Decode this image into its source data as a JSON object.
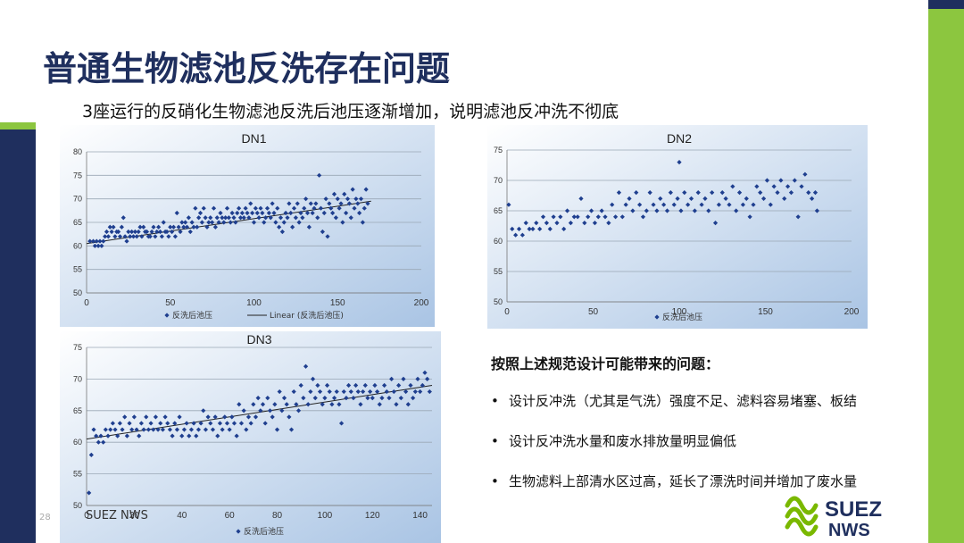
{
  "title": "普通生物滤池反洗存在问题",
  "subtitle": "3座运行的反硝化生物滤池反洗后池压逐渐增加，说明滤池反冲洗不彻底",
  "issues": {
    "heading": "按照上述规范设计可能带来的问题：",
    "items": [
      "设计反冲洗（尤其是气洗）强度不足、滤料容易堵塞、板结",
      "设计反冲洗水量和废水排放量明显偏低",
      "生物滤料上部清水区过高，延长了漂洗时间并增加了废水量"
    ]
  },
  "footer": {
    "page_number": "28",
    "company": "SUEZ NWS",
    "logo_text_top": "SUEZ",
    "logo_text_bottom": "NWS"
  },
  "colors": {
    "navy": "#1f2f5e",
    "green": "#8cc63f",
    "marker": "#1f3f8f",
    "chart_bg_light": "#ffffff",
    "chart_bg_dark": "#a9c4e4"
  },
  "chart_data": [
    {
      "type": "scatter",
      "title": "DN1",
      "xlim": [
        0,
        200
      ],
      "ylim": [
        50,
        80
      ],
      "xticks": [
        0,
        50,
        100,
        150,
        200
      ],
      "yticks": [
        50,
        55,
        60,
        65,
        70,
        75,
        80
      ],
      "legend": [
        "反洗后池压",
        "Linear (反洗后池压)"
      ],
      "trendline": {
        "x": [
          0,
          170
        ],
        "y": [
          60.5,
          69.5
        ]
      },
      "points": {
        "x": [
          2,
          4,
          5,
          6,
          7,
          8,
          9,
          10,
          11,
          12,
          13,
          14,
          15,
          16,
          17,
          18,
          19,
          20,
          21,
          22,
          23,
          24,
          25,
          26,
          27,
          28,
          29,
          30,
          31,
          32,
          33,
          34,
          35,
          36,
          37,
          38,
          39,
          40,
          41,
          42,
          43,
          44,
          45,
          46,
          47,
          48,
          49,
          50,
          51,
          52,
          53,
          54,
          55,
          56,
          57,
          58,
          59,
          60,
          61,
          62,
          63,
          64,
          65,
          66,
          67,
          68,
          69,
          70,
          71,
          72,
          73,
          74,
          75,
          76,
          77,
          78,
          79,
          80,
          81,
          82,
          83,
          84,
          85,
          86,
          87,
          88,
          89,
          90,
          91,
          92,
          93,
          94,
          95,
          96,
          97,
          98,
          99,
          100,
          101,
          102,
          103,
          104,
          105,
          106,
          107,
          108,
          109,
          110,
          111,
          112,
          113,
          114,
          115,
          116,
          117,
          118,
          119,
          120,
          121,
          122,
          123,
          124,
          125,
          126,
          127,
          128,
          129,
          130,
          131,
          132,
          133,
          134,
          135,
          136,
          137,
          138,
          139,
          140,
          141,
          142,
          143,
          144,
          145,
          146,
          147,
          148,
          149,
          150,
          151,
          152,
          153,
          154,
          155,
          156,
          157,
          158,
          159,
          160,
          161,
          162,
          163,
          164,
          165,
          166,
          167,
          168
        ],
        "y": [
          61,
          61,
          60,
          61,
          60,
          61,
          60,
          61,
          62,
          63,
          62,
          64,
          63,
          64,
          62,
          63,
          63,
          62,
          64,
          66,
          62,
          61,
          63,
          62,
          63,
          62,
          63,
          62,
          63,
          64,
          62,
          64,
          63,
          63,
          62,
          62,
          63,
          64,
          62,
          63,
          64,
          63,
          62,
          65,
          63,
          63,
          62,
          64,
          63,
          64,
          62,
          67,
          64,
          63,
          65,
          64,
          65,
          64,
          66,
          63,
          65,
          64,
          68,
          64,
          66,
          67,
          65,
          68,
          66,
          64,
          65,
          66,
          65,
          68,
          64,
          66,
          65,
          67,
          66,
          65,
          66,
          68,
          66,
          65,
          67,
          66,
          65,
          67,
          68,
          66,
          67,
          66,
          68,
          67,
          66,
          69,
          67,
          65,
          68,
          67,
          66,
          68,
          67,
          65,
          66,
          68,
          67,
          66,
          69,
          67,
          65,
          68,
          64,
          66,
          63,
          65,
          67,
          66,
          69,
          67,
          64,
          68,
          66,
          69,
          65,
          67,
          66,
          68,
          70,
          67,
          64,
          69,
          67,
          68,
          69,
          66,
          75,
          68,
          63,
          67,
          70,
          62,
          69,
          68,
          67,
          71,
          66,
          70,
          68,
          69,
          65,
          71,
          67,
          70,
          69,
          66,
          72,
          68,
          70,
          69,
          67,
          70,
          65,
          68,
          72,
          69
        ],
        "note": "values estimated from plot"
      }
    },
    {
      "type": "scatter",
      "title": "DN2",
      "xlim": [
        0,
        200
      ],
      "ylim": [
        50,
        75
      ],
      "xticks": [
        0,
        50,
        100,
        150,
        200
      ],
      "yticks": [
        50,
        55,
        60,
        65,
        70,
        75
      ],
      "legend": [
        "反洗后池压"
      ],
      "points": {
        "x": [
          1,
          3,
          5,
          7,
          9,
          11,
          13,
          15,
          17,
          19,
          21,
          23,
          25,
          27,
          29,
          31,
          33,
          35,
          37,
          39,
          41,
          43,
          45,
          47,
          49,
          51,
          53,
          55,
          57,
          59,
          61,
          63,
          65,
          67,
          69,
          71,
          73,
          75,
          77,
          79,
          81,
          83,
          85,
          87,
          89,
          91,
          93,
          95,
          97,
          99,
          100,
          101,
          103,
          105,
          107,
          109,
          111,
          113,
          115,
          117,
          119,
          121,
          123,
          125,
          127,
          129,
          131,
          133,
          135,
          137,
          139,
          141,
          143,
          145,
          147,
          149,
          151,
          153,
          155,
          157,
          159,
          161,
          163,
          165,
          167,
          169,
          171,
          173,
          175,
          177,
          179,
          180
        ],
        "y": [
          66,
          62,
          61,
          62,
          61,
          63,
          62,
          62,
          63,
          62,
          64,
          63,
          62,
          64,
          63,
          64,
          62,
          65,
          63,
          64,
          64,
          67,
          63,
          64,
          65,
          63,
          64,
          65,
          64,
          63,
          66,
          64,
          68,
          64,
          66,
          67,
          65,
          68,
          66,
          64,
          65,
          68,
          66,
          65,
          67,
          66,
          65,
          68,
          66,
          67,
          73,
          65,
          68,
          66,
          67,
          65,
          68,
          66,
          67,
          65,
          68,
          63,
          66,
          68,
          67,
          66,
          69,
          65,
          68,
          66,
          67,
          64,
          66,
          69,
          68,
          67,
          70,
          66,
          69,
          68,
          70,
          67,
          69,
          68,
          70,
          64,
          69,
          71,
          68,
          67,
          68,
          65
        ],
        "note": "values estimated from plot"
      }
    },
    {
      "type": "scatter",
      "title": "DN3",
      "xlim": [
        0,
        145
      ],
      "ylim": [
        50,
        75
      ],
      "xticks": [
        0,
        20,
        40,
        60,
        80,
        100,
        120,
        140
      ],
      "yticks": [
        50,
        55,
        60,
        65,
        70,
        75
      ],
      "legend": [
        "反洗后池压"
      ],
      "trendline": {
        "x": [
          0,
          145
        ],
        "y": [
          60.5,
          69
        ]
      },
      "points": {
        "x": [
          1,
          2,
          3,
          4,
          5,
          6,
          7,
          8,
          9,
          10,
          11,
          12,
          13,
          14,
          15,
          16,
          17,
          18,
          19,
          20,
          21,
          22,
          23,
          24,
          25,
          26,
          27,
          28,
          29,
          30,
          31,
          32,
          33,
          34,
          35,
          36,
          37,
          38,
          39,
          40,
          41,
          42,
          43,
          44,
          45,
          46,
          47,
          48,
          49,
          50,
          51,
          52,
          53,
          54,
          55,
          56,
          57,
          58,
          59,
          60,
          61,
          62,
          63,
          64,
          65,
          66,
          67,
          68,
          69,
          70,
          71,
          72,
          73,
          74,
          75,
          76,
          77,
          78,
          79,
          80,
          81,
          82,
          83,
          84,
          85,
          86,
          87,
          88,
          89,
          90,
          91,
          92,
          93,
          94,
          95,
          96,
          97,
          98,
          99,
          100,
          101,
          102,
          103,
          104,
          105,
          106,
          107,
          108,
          109,
          110,
          111,
          112,
          113,
          114,
          115,
          116,
          117,
          118,
          119,
          120,
          121,
          122,
          123,
          124,
          125,
          126,
          127,
          128,
          129,
          130,
          131,
          132,
          133,
          134,
          135,
          136,
          137,
          138,
          139,
          140,
          141,
          142,
          143,
          144
        ],
        "y": [
          52,
          58,
          62,
          61,
          60,
          61,
          60,
          62,
          61,
          62,
          63,
          62,
          61,
          63,
          62,
          64,
          61,
          63,
          62,
          64,
          62,
          61,
          63,
          62,
          64,
          62,
          63,
          62,
          64,
          62,
          63,
          62,
          64,
          63,
          62,
          61,
          63,
          62,
          64,
          61,
          62,
          63,
          61,
          62,
          63,
          61,
          62,
          63,
          65,
          62,
          64,
          63,
          62,
          64,
          61,
          63,
          62,
          64,
          63,
          62,
          64,
          63,
          61,
          66,
          63,
          65,
          62,
          64,
          63,
          66,
          64,
          67,
          65,
          66,
          63,
          67,
          65,
          64,
          66,
          62,
          68,
          65,
          67,
          66,
          64,
          62,
          68,
          66,
          65,
          69,
          67,
          72,
          66,
          68,
          70,
          67,
          69,
          68,
          66,
          67,
          69,
          68,
          66,
          67,
          68,
          66,
          63,
          68,
          67,
          69,
          68,
          67,
          69,
          68,
          66,
          68,
          69,
          67,
          68,
          67,
          69,
          68,
          66,
          67,
          69,
          68,
          67,
          70,
          68,
          66,
          69,
          67,
          70,
          68,
          66,
          69,
          67,
          68,
          70,
          68,
          69,
          71,
          70,
          68
        ],
        "note": "values estimated from plot"
      }
    }
  ]
}
